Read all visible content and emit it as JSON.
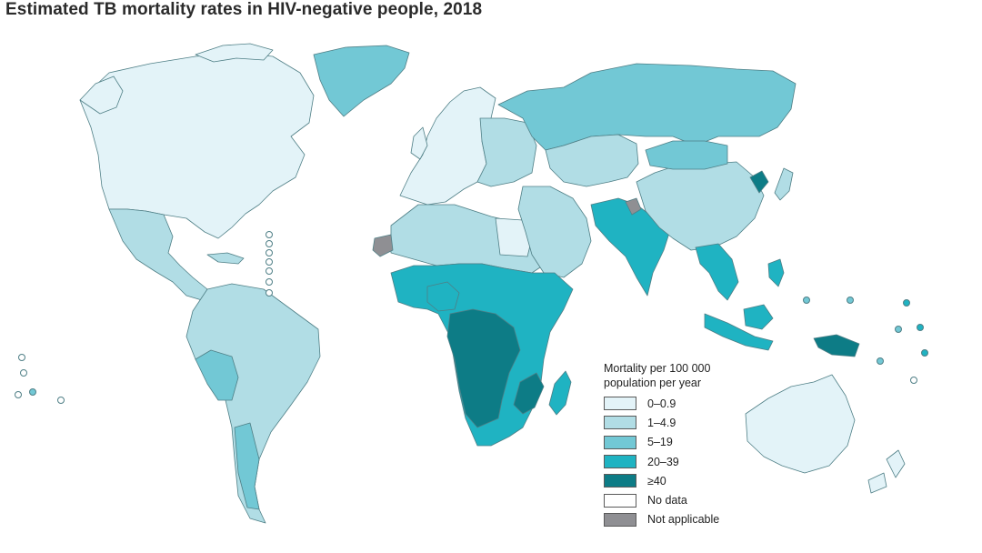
{
  "title": "Estimated TB mortality rates in HIV-negative people, 2018",
  "legend": {
    "title_line1": "Mortality per 100 000",
    "title_line2": "population per year",
    "items": [
      {
        "label": "0–0.9",
        "color": "#e3f3f8"
      },
      {
        "label": "1–4.9",
        "color": "#b1dde5"
      },
      {
        "label": "5–19",
        "color": "#72c8d5"
      },
      {
        "label": "20–39",
        "color": "#1fb3c2"
      },
      {
        "label": "≥40",
        "color": "#0d7c86"
      },
      {
        "label": "No data",
        "color": "#ffffff"
      },
      {
        "label": "Not applicable",
        "color": "#8f8f93"
      }
    ]
  },
  "regions": [
    {
      "name": "North America",
      "category": "0–0.9"
    },
    {
      "name": "Greenland",
      "category": "5–19"
    },
    {
      "name": "Mexico & Central America",
      "category": "1–4.9"
    },
    {
      "name": "South America",
      "category": "1–4.9"
    },
    {
      "name": "Western Europe",
      "category": "0–0.9"
    },
    {
      "name": "Eastern Europe",
      "category": "1–4.9"
    },
    {
      "name": "Russia",
      "category": "5–19"
    },
    {
      "name": "North Africa",
      "category": "1–4.9"
    },
    {
      "name": "Sub-Saharan Africa",
      "category": "20–39"
    },
    {
      "name": "Central Africa",
      "category": "≥40"
    },
    {
      "name": "Middle East",
      "category": "1–4.9"
    },
    {
      "name": "Central Asia",
      "category": "1–4.9"
    },
    {
      "name": "South Asia",
      "category": "20–39"
    },
    {
      "name": "China",
      "category": "1–4.9"
    },
    {
      "name": "Mongolia",
      "category": "5–19"
    },
    {
      "name": "North Korea",
      "category": "≥40"
    },
    {
      "name": "Southeast Asia",
      "category": "20–39"
    },
    {
      "name": "Indonesia",
      "category": "20–39"
    },
    {
      "name": "Papua New Guinea",
      "category": "≥40"
    },
    {
      "name": "Australia",
      "category": "0–0.9"
    },
    {
      "name": "New Zealand",
      "category": "0–0.9"
    },
    {
      "name": "Western Sahara",
      "category": "Not applicable"
    },
    {
      "name": "Kashmir",
      "category": "Not applicable"
    }
  ]
}
